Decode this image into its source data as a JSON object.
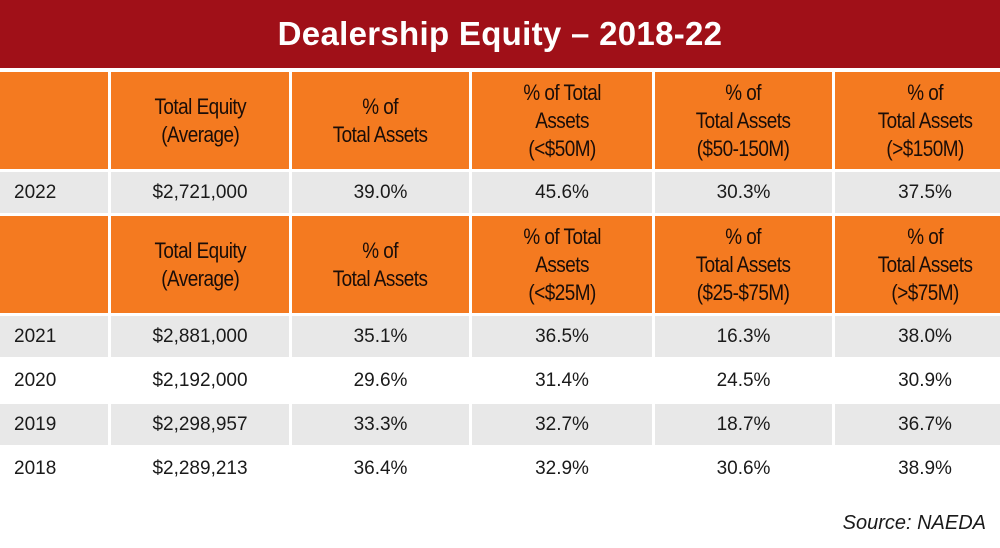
{
  "chart_data": {
    "type": "table",
    "title": "Dealership Equity – 2018-22",
    "source": "Source: NAEDA",
    "colors": {
      "title_bg": "#a01018",
      "header_bg": "#f47a20",
      "shade_bg": "#e8e8e8"
    },
    "sections": [
      {
        "headers": [
          "",
          "Total Equity\n(Average)",
          "% of\nTotal Assets",
          "% of Total\nAssets\n(<$50M)",
          "% of\nTotal Assets\n($50-150M)",
          "% of\nTotal Assets\n(>$150M)"
        ],
        "rows": [
          [
            "2022",
            "$2,721,000",
            "39.0%",
            "45.6%",
            "30.3%",
            "37.5%"
          ]
        ]
      },
      {
        "headers": [
          "",
          "Total Equity\n(Average)",
          "% of\nTotal Assets",
          "% of Total\nAssets\n(<$25M)",
          "% of\nTotal Assets\n($25-$75M)",
          "% of\nTotal Assets\n(>$75M)"
        ],
        "rows": [
          [
            "2021",
            "$2,881,000",
            "35.1%",
            "36.5%",
            "16.3%",
            "38.0%"
          ],
          [
            "2020",
            "$2,192,000",
            "29.6%",
            "31.4%",
            "24.5%",
            "30.9%"
          ],
          [
            "2019",
            "$2,298,957",
            "33.3%",
            "32.7%",
            "18.7%",
            "36.7%"
          ],
          [
            "2018",
            "$2,289,213",
            "36.4%",
            "32.9%",
            "30.6%",
            "38.9%"
          ]
        ]
      }
    ]
  }
}
